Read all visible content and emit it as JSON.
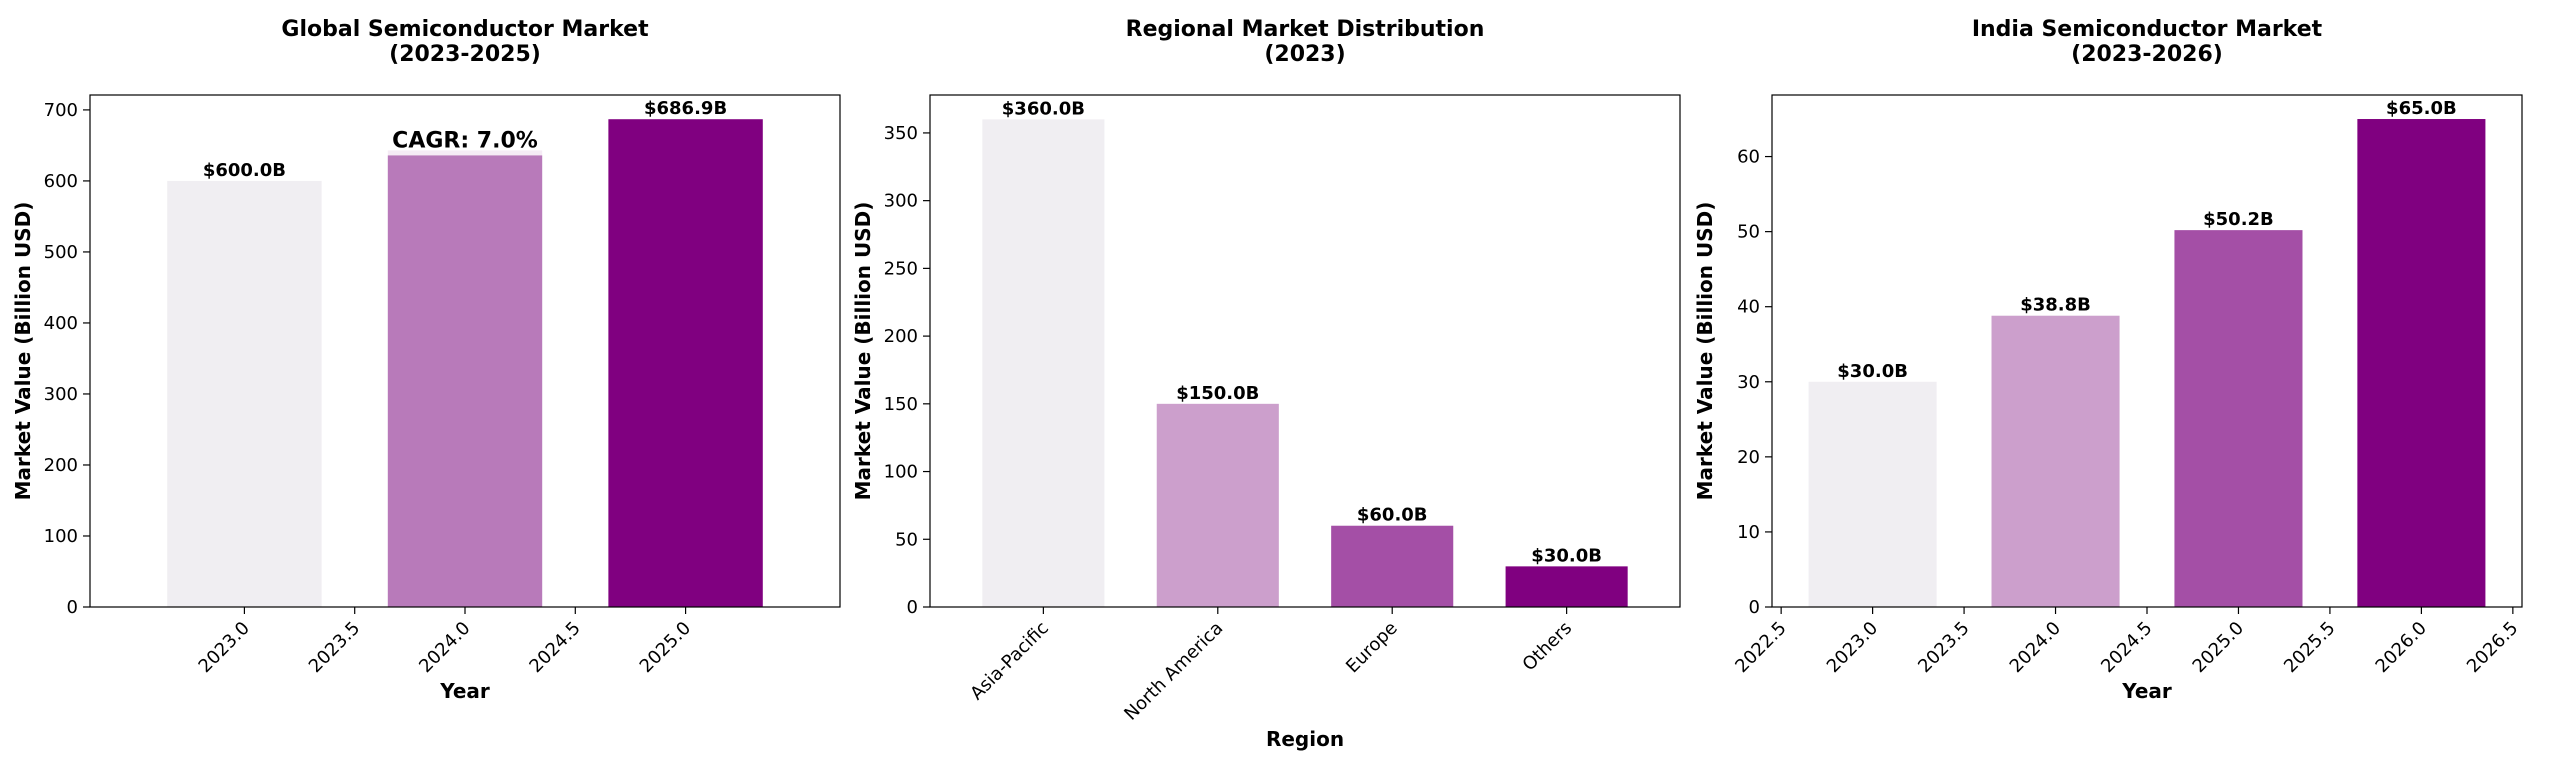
{
  "chart_data": [
    {
      "type": "bar",
      "title": [
        "Global Semiconductor Market",
        "(2023-2025)"
      ],
      "xlabel": "Year",
      "ylabel": "Market Value (Billion USD)",
      "x": [
        2023,
        2024,
        2025
      ],
      "values": [
        600.0,
        643.0,
        686.9
      ],
      "value_labels": [
        "$600.0B",
        "",
        "$686.9B"
      ],
      "bar_colors": [
        "#f0eef2",
        "#b87aba",
        "#800080"
      ],
      "xlim": [
        2022.3,
        2025.7
      ],
      "ylim": [
        0,
        721
      ],
      "xticks": [
        2023.0,
        2023.5,
        2024.0,
        2024.5,
        2025.0
      ],
      "xtick_labels": [
        "2023.0",
        "2023.5",
        "2024.0",
        "2024.5",
        "2025.0"
      ],
      "yticks": [
        0,
        100,
        200,
        300,
        400,
        500,
        600,
        700
      ],
      "annotation": {
        "text": "CAGR: 7.0%",
        "x": 2024.0,
        "y": 650
      },
      "grid": false
    },
    {
      "type": "bar",
      "title": [
        "Regional Market Distribution",
        "(2023)"
      ],
      "xlabel": "Region",
      "ylabel": "Market Value (Billion USD)",
      "categories": [
        "Asia-Pacific",
        "North America",
        "Europe",
        "Others"
      ],
      "values": [
        360.0,
        150.0,
        60.0,
        30.0
      ],
      "value_labels": [
        "$360.0B",
        "$150.0B",
        "$60.0B",
        "$30.0B"
      ],
      "bar_colors": [
        "#f0eef2",
        "#cc9fcc",
        "#a44fa6",
        "#800080"
      ],
      "ylim": [
        0,
        378
      ],
      "yticks": [
        0,
        50,
        100,
        150,
        200,
        250,
        300,
        350
      ],
      "grid": false
    },
    {
      "type": "bar",
      "title": [
        "India Semiconductor Market",
        "(2023-2026)"
      ],
      "xlabel": "Year",
      "ylabel": "Market Value (Billion USD)",
      "x": [
        2023,
        2024,
        2025,
        2026
      ],
      "values": [
        30.0,
        38.8,
        50.2,
        65.0
      ],
      "value_labels": [
        "$30.0B",
        "$38.8B",
        "$50.2B",
        "$65.0B"
      ],
      "bar_colors": [
        "#f0eef2",
        "#cc9fcc",
        "#a44fa6",
        "#800080"
      ],
      "xlim": [
        2022.45,
        2026.55
      ],
      "ylim": [
        0,
        68.2
      ],
      "xticks": [
        2022.5,
        2023.0,
        2023.5,
        2024.0,
        2024.5,
        2025.0,
        2025.5,
        2026.0,
        2026.5
      ],
      "xtick_labels": [
        "2022.5",
        "2023.0",
        "2023.5",
        "2024.0",
        "2024.5",
        "2025.0",
        "2025.5",
        "2026.0",
        "2026.5"
      ],
      "yticks": [
        0,
        10,
        20,
        30,
        40,
        50,
        60
      ],
      "grid": false
    }
  ]
}
